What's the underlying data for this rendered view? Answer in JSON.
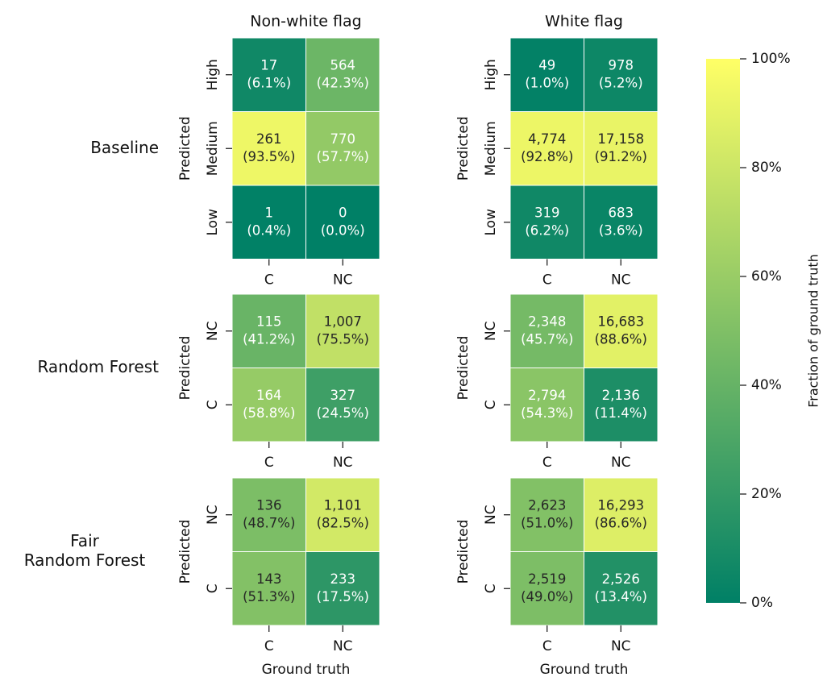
{
  "chart_data": [
    {
      "type": "heatmap",
      "title": "Non-white flag",
      "row_title": [
        "Baseline"
      ],
      "ylabel": "Predicted",
      "x_categories": [
        "C",
        "NC"
      ],
      "y_categories": [
        "High",
        "Medium",
        "Low"
      ],
      "values": [
        [
          17,
          564
        ],
        [
          261,
          770
        ],
        [
          1,
          0
        ]
      ],
      "value_labels": [
        [
          "17",
          "564"
        ],
        [
          "261",
          "770"
        ],
        [
          "1",
          "0"
        ]
      ],
      "fractions": [
        [
          6.1,
          42.3
        ],
        [
          93.5,
          57.7
        ],
        [
          0.4,
          0.0
        ]
      ],
      "fraction_labels": [
        [
          "(6.1%)",
          "(42.3%)"
        ],
        [
          "(93.5%)",
          "(57.7%)"
        ],
        [
          "(0.4%)",
          "(0.0%)"
        ]
      ],
      "label_colors": [
        [
          "#ffffff",
          "#ffffff"
        ],
        [
          "#262626",
          "#ffffff"
        ],
        [
          "#ffffff",
          "#ffffff"
        ]
      ]
    },
    {
      "type": "heatmap",
      "title": "White flag",
      "ylabel": "Predicted",
      "x_categories": [
        "C",
        "NC"
      ],
      "y_categories": [
        "High",
        "Medium",
        "Low"
      ],
      "values": [
        [
          49,
          978
        ],
        [
          4774,
          17158
        ],
        [
          319,
          683
        ]
      ],
      "value_labels": [
        [
          "49",
          "978"
        ],
        [
          "4,774",
          "17,158"
        ],
        [
          "319",
          "683"
        ]
      ],
      "fractions": [
        [
          1.0,
          5.2
        ],
        [
          92.8,
          91.2
        ],
        [
          6.2,
          3.6
        ]
      ],
      "fraction_labels": [
        [
          "(1.0%)",
          "(5.2%)"
        ],
        [
          "(92.8%)",
          "(91.2%)"
        ],
        [
          "(6.2%)",
          "(3.6%)"
        ]
      ],
      "label_colors": [
        [
          "#ffffff",
          "#ffffff"
        ],
        [
          "#262626",
          "#262626"
        ],
        [
          "#ffffff",
          "#ffffff"
        ]
      ]
    },
    {
      "type": "heatmap",
      "row_title": [
        "Random Forest"
      ],
      "ylabel": "Predicted",
      "x_categories": [
        "C",
        "NC"
      ],
      "y_categories": [
        "NC",
        "C"
      ],
      "values": [
        [
          115,
          1007
        ],
        [
          164,
          327
        ]
      ],
      "value_labels": [
        [
          "115",
          "1,007"
        ],
        [
          "164",
          "327"
        ]
      ],
      "fractions": [
        [
          41.2,
          75.5
        ],
        [
          58.8,
          24.5
        ]
      ],
      "fraction_labels": [
        [
          "(41.2%)",
          "(75.5%)"
        ],
        [
          "(58.8%)",
          "(24.5%)"
        ]
      ],
      "label_colors": [
        [
          "#ffffff",
          "#262626"
        ],
        [
          "#ffffff",
          "#ffffff"
        ]
      ]
    },
    {
      "type": "heatmap",
      "ylabel": "Predicted",
      "x_categories": [
        "C",
        "NC"
      ],
      "y_categories": [
        "NC",
        "C"
      ],
      "values": [
        [
          2348,
          16683
        ],
        [
          2794,
          2136
        ]
      ],
      "value_labels": [
        [
          "2,348",
          "16,683"
        ],
        [
          "2,794",
          "2,136"
        ]
      ],
      "fractions": [
        [
          45.7,
          88.6
        ],
        [
          54.3,
          11.4
        ]
      ],
      "fraction_labels": [
        [
          "(45.7%)",
          "(88.6%)"
        ],
        [
          "(54.3%)",
          "(11.4%)"
        ]
      ],
      "label_colors": [
        [
          "#ffffff",
          "#262626"
        ],
        [
          "#ffffff",
          "#ffffff"
        ]
      ]
    },
    {
      "type": "heatmap",
      "row_title": [
        "Fair",
        "Random Forest"
      ],
      "ylabel": "Predicted",
      "xlabel": "Ground truth",
      "x_categories": [
        "C",
        "NC"
      ],
      "y_categories": [
        "NC",
        "C"
      ],
      "values": [
        [
          136,
          1101
        ],
        [
          143,
          233
        ]
      ],
      "value_labels": [
        [
          "136",
          "1,101"
        ],
        [
          "143",
          "233"
        ]
      ],
      "fractions": [
        [
          48.7,
          82.5
        ],
        [
          51.3,
          17.5
        ]
      ],
      "fraction_labels": [
        [
          "(48.7%)",
          "(82.5%)"
        ],
        [
          "(51.3%)",
          "(17.5%)"
        ]
      ],
      "label_colors": [
        [
          "#262626",
          "#262626"
        ],
        [
          "#262626",
          "#ffffff"
        ]
      ]
    },
    {
      "type": "heatmap",
      "ylabel": "Predicted",
      "xlabel": "Ground truth",
      "x_categories": [
        "C",
        "NC"
      ],
      "y_categories": [
        "NC",
        "C"
      ],
      "values": [
        [
          2623,
          16293
        ],
        [
          2519,
          2526
        ]
      ],
      "value_labels": [
        [
          "2,623",
          "16,293"
        ],
        [
          "2,519",
          "2,526"
        ]
      ],
      "fractions": [
        [
          51.0,
          86.6
        ],
        [
          49.0,
          13.4
        ]
      ],
      "fraction_labels": [
        [
          "(51.0%)",
          "(86.6%)"
        ],
        [
          "(49.0%)",
          "(13.4%)"
        ]
      ],
      "label_colors": [
        [
          "#262626",
          "#262626"
        ],
        [
          "#262626",
          "#ffffff"
        ]
      ]
    },
    {
      "type": "colorbar",
      "label": "Fraction of ground truth",
      "ylim": [
        0,
        100
      ],
      "yticks": [
        {
          "value": 0,
          "label": "0%"
        },
        {
          "value": 20,
          "label": "20%"
        },
        {
          "value": 40,
          "label": "40%"
        },
        {
          "value": 60,
          "label": "60%"
        },
        {
          "value": 80,
          "label": "80%"
        },
        {
          "value": 100,
          "label": "100%"
        }
      ]
    }
  ]
}
